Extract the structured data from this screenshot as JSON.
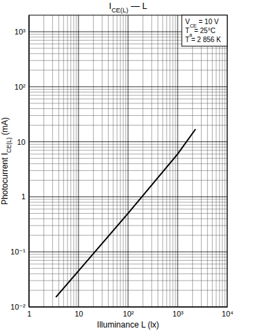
{
  "chart_data": {
    "type": "line",
    "log": true,
    "grid": true,
    "title": [
      "I",
      "CE(L)",
      " — L"
    ],
    "x_label": "Illuminance L (lx)",
    "y_label": [
      "Photocurrent I",
      "CE(L)",
      " (mA)"
    ],
    "annotations": [
      [
        "V",
        "CE",
        " = 10 V"
      ],
      [
        "T",
        "a",
        " = 25°C"
      ],
      [
        "T = 2 856 K"
      ]
    ],
    "x": [
      3.5,
      10,
      100,
      1000,
      2300
    ],
    "values": [
      0.015,
      0.045,
      0.5,
      6,
      17
    ],
    "color": "#000000",
    "legend": "upper right",
    "xlim": [
      1,
      10000
    ],
    "ylim": [
      0.01,
      2000
    ],
    "xticks": [
      1,
      10,
      {
        "value": 100,
        "label": "10²"
      },
      {
        "value": 1000,
        "label": "10³"
      },
      {
        "value": 10000,
        "label": "10⁴"
      }
    ],
    "yticks": [
      {
        "value": 0.01,
        "label": "10⁻²"
      },
      {
        "value": 0.1,
        "label": "10⁻¹"
      },
      1,
      10,
      {
        "value": 100,
        "label": "10²"
      },
      {
        "value": 1000,
        "label": "10³"
      }
    ]
  }
}
